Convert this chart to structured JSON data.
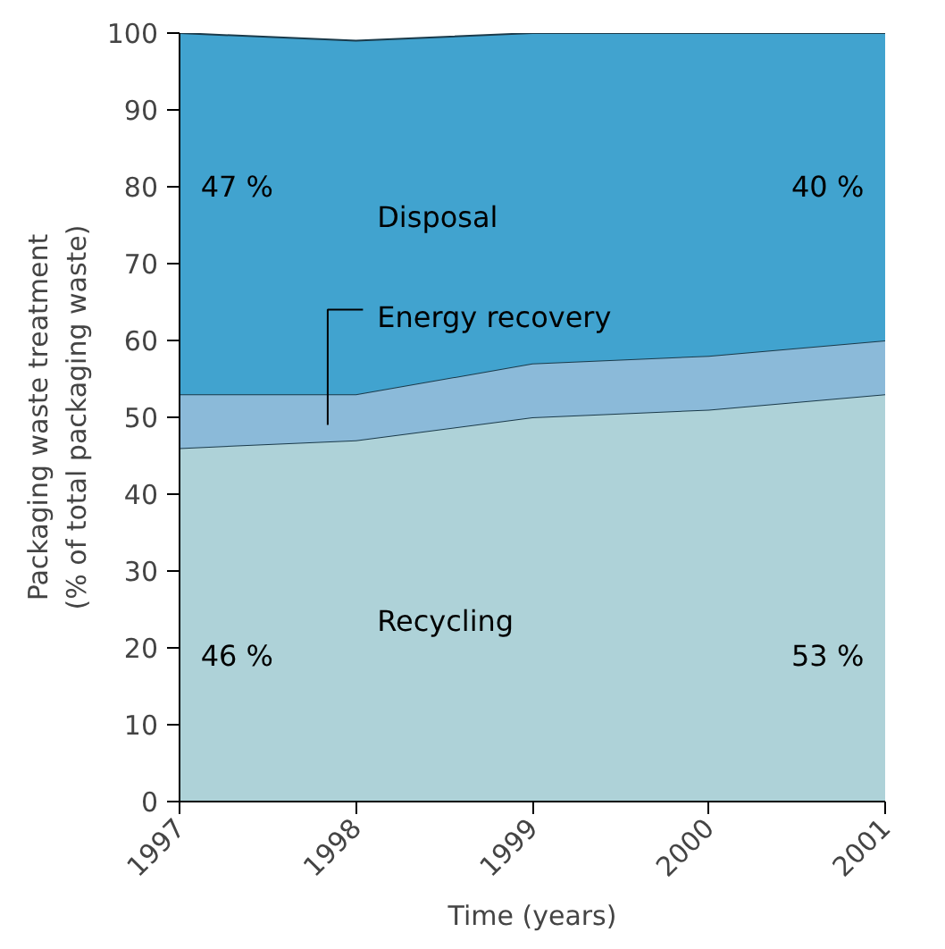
{
  "chart_data": {
    "type": "area",
    "stacked": true,
    "xlabel": "Time (years)",
    "ylabel": "Packaging waste treatment\n(% of total packaging waste)",
    "x": [
      1997,
      1998,
      1999,
      2000,
      2001
    ],
    "series": [
      {
        "name": "Recycling",
        "color": "#aed2d8",
        "values": [
          46,
          47,
          50,
          51,
          53
        ]
      },
      {
        "name": "Energy recovery",
        "color": "#8bbad9",
        "values": [
          7,
          6,
          7,
          7,
          7
        ]
      },
      {
        "name": "Disposal",
        "color": "#41a3cf",
        "values": [
          47,
          46,
          43,
          42,
          40
        ]
      }
    ],
    "annotations": [
      "47 %",
      "40 %",
      "46 %",
      "53 %"
    ],
    "xlim": [
      1997,
      2001
    ],
    "xticks": [
      1997,
      1998,
      1999,
      2000,
      2001
    ],
    "ylim": [
      0,
      100
    ],
    "yticks": [
      0,
      10,
      20,
      30,
      40,
      50,
      60,
      70,
      80,
      90,
      100
    ],
    "grid": false
  }
}
